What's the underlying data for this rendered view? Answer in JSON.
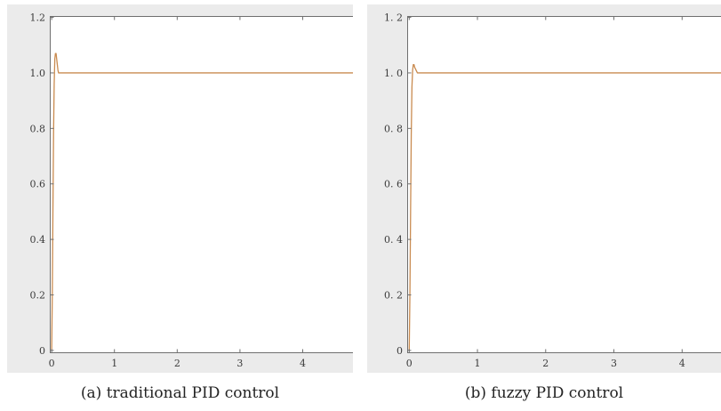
{
  "chart_data": [
    {
      "type": "line",
      "caption": "(a) traditional PID control",
      "xlim": [
        -0.03,
        4.8
      ],
      "ylim": [
        -0.01,
        1.205
      ],
      "xticks": [
        0,
        1,
        2,
        3,
        4
      ],
      "xtick_labels": [
        "0",
        "1",
        "2",
        "3",
        "4"
      ],
      "yticks": [
        0,
        0.2,
        0.4,
        0.6,
        0.8,
        1.0,
        1.2
      ],
      "ytick_labels": [
        "0",
        "0.2",
        "0.4",
        "0.6",
        "0.8",
        "1.0",
        "1.2"
      ],
      "grid": false,
      "colors": {
        "frame_background": "#ebebeb",
        "plot_background": "#ffffff",
        "axis": "#6f6f6f"
      },
      "series": [
        {
          "color": "#c98b50",
          "x": [
            0,
            0.01,
            0.02,
            0.03,
            0.04,
            0.05,
            0.06,
            0.07,
            0.08,
            0.09,
            0.1,
            0.11,
            0.13,
            0.2,
            4.8
          ],
          "y": [
            0,
            0.2,
            0.5,
            0.78,
            0.96,
            1.05,
            1.07,
            1.07,
            1.05,
            1.03,
            1.01,
            1.0,
            1.0,
            1.0,
            1.0
          ]
        }
      ]
    },
    {
      "type": "line",
      "caption": "(b) fuzzy PID control",
      "xlim": [
        -0.03,
        4.57
      ],
      "ylim": [
        -0.01,
        1.205
      ],
      "xticks": [
        0,
        1,
        2,
        3,
        4
      ],
      "xtick_labels": [
        "0",
        "1",
        "2",
        "3",
        "4"
      ],
      "yticks": [
        0,
        0.2,
        0.4,
        0.6,
        0.8,
        1.0,
        1.2
      ],
      "ytick_labels": [
        "0",
        "0. 2",
        "0. 4",
        "0. 6",
        "0. 8",
        "1. 0",
        "1. 2"
      ],
      "grid": false,
      "colors": {
        "frame_background": "#ebebeb",
        "plot_background": "#ffffff",
        "axis": "#6f6f6f"
      },
      "series": [
        {
          "color": "#c98b50",
          "x": [
            0,
            0.01,
            0.02,
            0.03,
            0.04,
            0.05,
            0.06,
            0.07,
            0.08,
            0.1,
            0.12,
            0.2,
            4.8
          ],
          "y": [
            0,
            0.2,
            0.5,
            0.78,
            0.95,
            1.01,
            1.03,
            1.03,
            1.02,
            1.01,
            1.0,
            1.0,
            1.0
          ]
        }
      ]
    }
  ]
}
